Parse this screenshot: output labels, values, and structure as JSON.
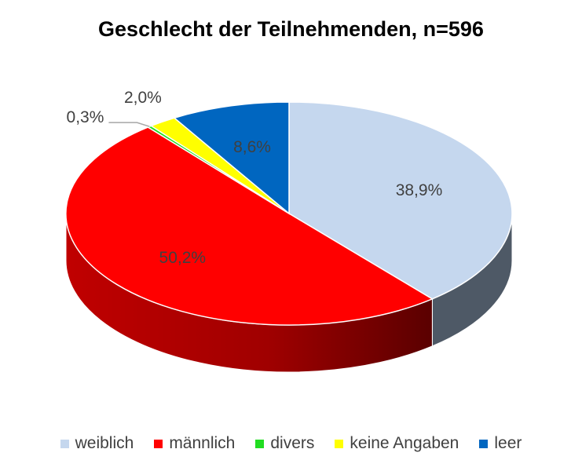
{
  "chart_data": {
    "type": "pie",
    "title": "Geschlecht der Teilnehmenden, n=596",
    "slices": [
      {
        "label": "weiblich",
        "value": 38.9,
        "display": "38,9%",
        "color": "#C5D7EE"
      },
      {
        "label": "männlich",
        "value": 50.2,
        "display": "50,2%",
        "color": "#FF0000"
      },
      {
        "label": "divers",
        "value": 0.3,
        "display": "0,3%",
        "color": "#22DD22"
      },
      {
        "label": "keine Angaben",
        "value": 2.0,
        "display": "2,0%",
        "color": "#FFFF00"
      },
      {
        "label": "leer",
        "value": 8.6,
        "display": "8,6%",
        "color": "#0066C0"
      }
    ],
    "legend_position": "bottom",
    "style": "3d"
  }
}
